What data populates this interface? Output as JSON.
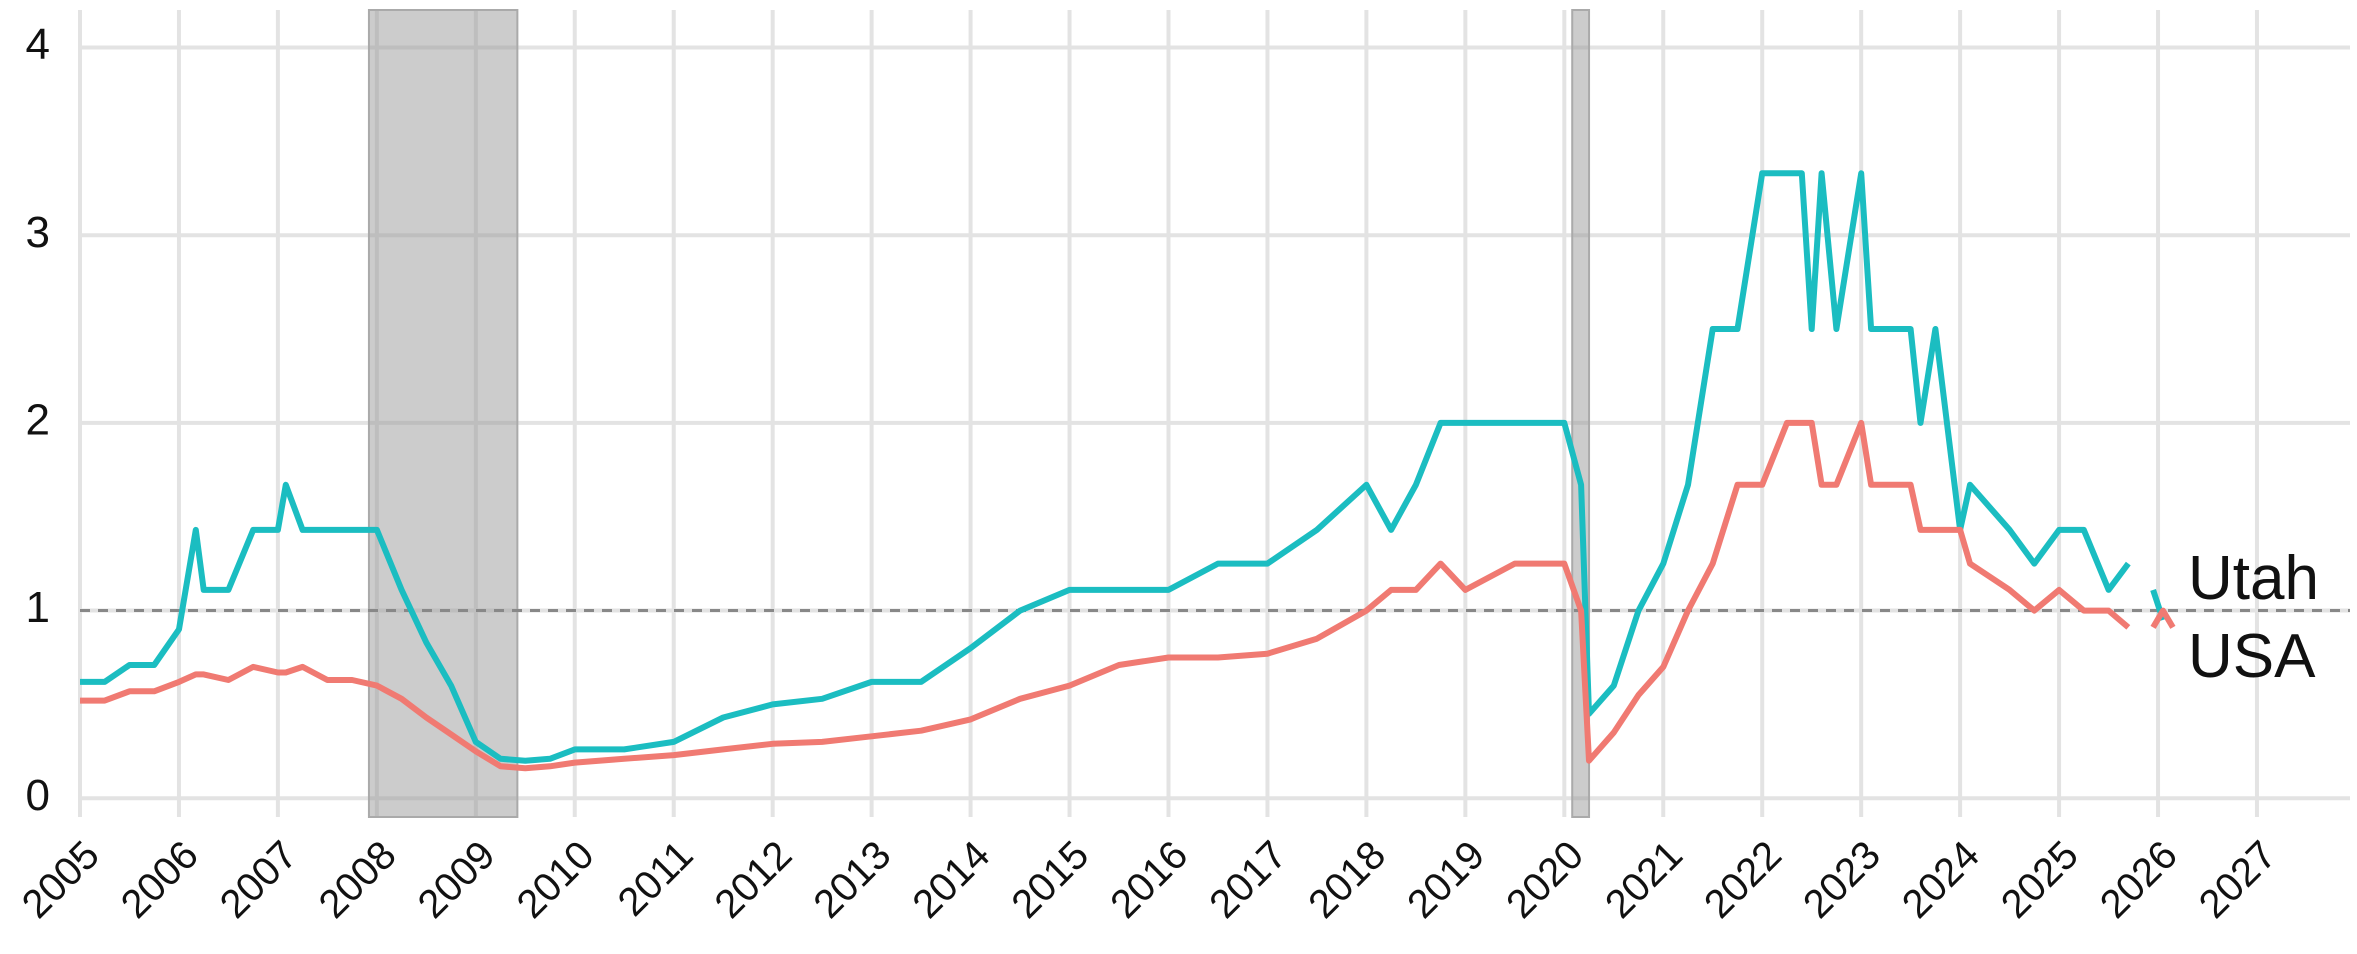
{
  "chart_data": {
    "type": "line",
    "x": [
      2005.0,
      2005.25,
      2005.5,
      2005.75,
      2006.0,
      2006.17,
      2006.25,
      2006.5,
      2006.75,
      2007.0,
      2007.08,
      2007.25,
      2007.5,
      2007.75,
      2008.0,
      2008.25,
      2008.5,
      2008.75,
      2009.0,
      2009.25,
      2009.5,
      2009.75,
      2010.0,
      2010.5,
      2011.0,
      2011.5,
      2012.0,
      2012.5,
      2013.0,
      2013.5,
      2014.0,
      2014.5,
      2015.0,
      2015.5,
      2016.0,
      2016.5,
      2017.0,
      2017.5,
      2018.0,
      2018.25,
      2018.5,
      2018.75,
      2019.0,
      2019.5,
      2019.9,
      2020.0,
      2020.17,
      2020.25,
      2020.5,
      2020.75,
      2021.0,
      2021.25,
      2021.5,
      2021.75,
      2022.0,
      2022.25,
      2022.4,
      2022.5,
      2022.6,
      2022.75,
      2023.0,
      2023.1,
      2023.5,
      2023.6,
      2023.75,
      2024.0,
      2024.1,
      2024.5,
      2024.75,
      2025.0,
      2025.25,
      2025.5,
      2025.7,
      2025.85,
      2025.95,
      2026.05,
      2026.15
    ],
    "series": [
      {
        "name": "Utah",
        "color": "#1bbdc1",
        "values": [
          0.62,
          0.62,
          0.71,
          0.71,
          0.9,
          1.43,
          1.11,
          1.11,
          1.43,
          1.43,
          1.67,
          1.43,
          1.43,
          1.43,
          1.43,
          1.11,
          0.83,
          0.6,
          0.3,
          0.21,
          0.2,
          0.21,
          0.26,
          0.26,
          0.3,
          0.43,
          0.5,
          0.53,
          0.62,
          0.62,
          0.8,
          1.0,
          1.11,
          1.11,
          1.11,
          1.25,
          1.25,
          1.43,
          1.67,
          1.43,
          1.67,
          2.0,
          2.0,
          2.0,
          2.0,
          2.0,
          1.67,
          0.45,
          0.6,
          1.0,
          1.25,
          1.67,
          2.5,
          2.5,
          3.33,
          3.33,
          3.33,
          2.5,
          3.33,
          2.5,
          3.33,
          2.5,
          2.5,
          2.0,
          2.5,
          1.43,
          1.67,
          1.43,
          1.25,
          1.43,
          1.43,
          1.11,
          1.25,
          null,
          1.11,
          0.95,
          null
        ]
      },
      {
        "name": "USA",
        "color": "#f07a72",
        "values": [
          0.52,
          0.52,
          0.57,
          0.57,
          0.62,
          0.66,
          0.66,
          0.63,
          0.7,
          0.67,
          0.67,
          0.7,
          0.63,
          0.63,
          0.6,
          0.53,
          0.43,
          0.34,
          0.25,
          0.17,
          0.16,
          0.17,
          0.19,
          0.21,
          0.23,
          0.26,
          0.29,
          0.3,
          0.33,
          0.36,
          0.42,
          0.53,
          0.6,
          0.71,
          0.75,
          0.75,
          0.77,
          0.85,
          1.0,
          1.11,
          1.11,
          1.25,
          1.11,
          1.25,
          1.25,
          1.25,
          1.0,
          0.2,
          0.35,
          0.55,
          0.7,
          1.0,
          1.25,
          1.67,
          1.67,
          2.0,
          2.0,
          2.0,
          1.67,
          1.67,
          2.0,
          1.67,
          1.67,
          1.43,
          1.43,
          1.43,
          1.25,
          1.11,
          1.0,
          1.11,
          1.0,
          1.0,
          0.91,
          null,
          0.91,
          1.0,
          0.91
        ]
      }
    ],
    "recessions": [
      [
        2007.92,
        2009.42
      ],
      [
        2020.08,
        2020.25
      ]
    ],
    "reference_line": 1,
    "xlim": [
      2005,
      2027.94
    ],
    "xticks": [
      2005,
      2006,
      2007,
      2008,
      2009,
      2010,
      2011,
      2012,
      2013,
      2014,
      2015,
      2016,
      2017,
      2018,
      2019,
      2020,
      2021,
      2022,
      2023,
      2024,
      2025,
      2026,
      2027
    ],
    "ylim": [
      -0.1,
      4.2
    ],
    "yticks": [
      0,
      1,
      2,
      3,
      4
    ],
    "grid": true
  }
}
